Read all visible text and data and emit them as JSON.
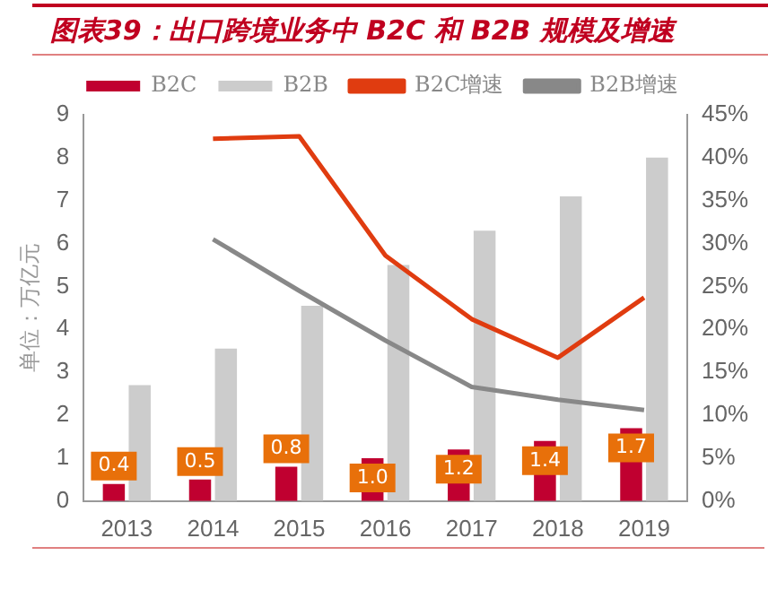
{
  "chart_data": {
    "type": "bar",
    "title": "图表39：出口跨境业务中 B2C 和 B2B 规模及增速",
    "ylabel": "单位：万亿元",
    "categories": [
      "2013",
      "2014",
      "2015",
      "2016",
      "2017",
      "2018",
      "2019"
    ],
    "series": [
      {
        "name": "B2C",
        "color": "#c00030",
        "values": [
          0.4,
          0.5,
          0.8,
          1.0,
          1.2,
          1.4,
          1.7
        ],
        "value_labels": [
          "0.4",
          "0.5",
          "0.8",
          "1.0",
          "1.2",
          "1.4",
          "1.7"
        ]
      },
      {
        "name": "B2B",
        "color": "#cccccc",
        "values": [
          2.7,
          3.55,
          4.55,
          5.5,
          6.3,
          7.1,
          8.0
        ]
      },
      {
        "name": "B2C增速",
        "type": "line",
        "axis": "y2",
        "color": "#e03c10",
        "values": [
          null,
          42.2,
          42.5,
          28.6,
          21.2,
          16.7,
          23.7
        ]
      },
      {
        "name": "B2B增速",
        "type": "line",
        "axis": "y2",
        "color": "#888888",
        "values": [
          null,
          30.5,
          24.5,
          18.7,
          13.3,
          11.8,
          10.6
        ]
      }
    ],
    "ylim": [
      0,
      9
    ],
    "yticks": [
      0,
      1,
      2,
      3,
      4,
      5,
      6,
      7,
      8,
      9
    ],
    "y2lim": [
      0,
      45
    ],
    "y2ticks": [
      {
        "value": 0,
        "label": "0%"
      },
      {
        "value": 5,
        "label": "5%"
      },
      {
        "value": 10,
        "label": "10%"
      },
      {
        "value": 15,
        "label": "15%"
      },
      {
        "value": 20,
        "label": "20%"
      },
      {
        "value": 25,
        "label": "25%"
      },
      {
        "value": 30,
        "label": "30%"
      },
      {
        "value": 35,
        "label": "35%"
      },
      {
        "value": 40,
        "label": "40%"
      },
      {
        "value": 45,
        "label": "45%"
      }
    ],
    "grid": false,
    "legend": "top",
    "marker": "none",
    "line_style": "solid"
  }
}
